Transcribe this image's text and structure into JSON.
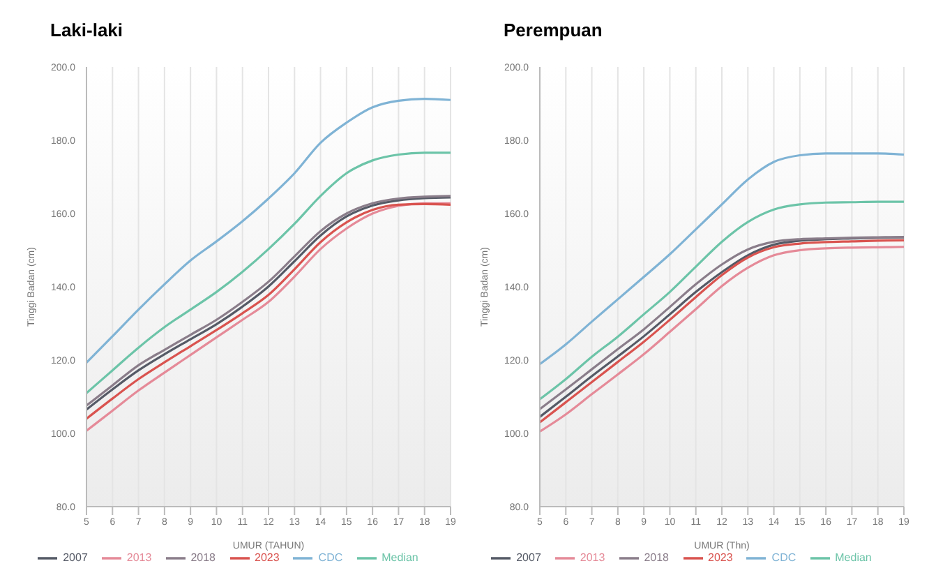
{
  "chart_data": [
    {
      "type": "line",
      "title": "Laki-laki",
      "xlabel": "UMUR (TAHUN)",
      "ylabel": "Tinggi Badan (cm)",
      "categories": [
        "5",
        "6",
        "7",
        "8",
        "9",
        "10",
        "11",
        "12",
        "13",
        "14",
        "15",
        "16",
        "17",
        "18",
        "19"
      ],
      "series": [
        {
          "name": "2007",
          "color": "#555a66",
          "values": [
            106.5,
            112,
            117.2,
            121.6,
            125.7,
            129.8,
            134.6,
            140.1,
            147,
            154,
            159.2,
            162.2,
            163.6,
            164.2,
            164.4
          ]
        },
        {
          "name": "2013",
          "color": "#e58a98",
          "values": [
            100.7,
            106.2,
            111.7,
            116.6,
            121.4,
            126.2,
            131,
            135.9,
            142.8,
            150.3,
            155.9,
            160,
            162.1,
            162.8,
            162.8
          ]
        },
        {
          "name": "2018",
          "color": "#8a7d8a",
          "values": [
            107.6,
            113.1,
            118.6,
            122.8,
            126.9,
            131,
            135.9,
            141.4,
            148.3,
            155.2,
            160,
            162.8,
            164.1,
            164.6,
            164.8
          ]
        },
        {
          "name": "2023",
          "color": "#d9534f",
          "values": [
            104,
            109.5,
            114.8,
            119.4,
            123.8,
            128.2,
            132.8,
            137.8,
            144.8,
            152.2,
            157.6,
            161,
            162.4,
            162.6,
            162.4
          ]
        },
        {
          "name": "Median",
          "color": "#6cc4a8",
          "values": [
            111,
            117.2,
            123.4,
            129,
            133.8,
            138.6,
            144.1,
            150.3,
            157.2,
            164.8,
            171,
            174.5,
            176.1,
            176.6,
            176.6
          ]
        },
        {
          "name": "CDC",
          "color": "#7fb3d5",
          "values": [
            119.3,
            126.5,
            133.8,
            140.7,
            147.2,
            152.4,
            157.9,
            164.1,
            171,
            179.3,
            184.8,
            189,
            190.8,
            191.3,
            191
          ]
        }
      ],
      "ylim": [
        80,
        200
      ],
      "yticks": [
        {
          "value": 80,
          "label": "80.0"
        },
        {
          "value": 100,
          "label": "100.0"
        },
        {
          "value": 120,
          "label": "120.0"
        },
        {
          "value": 140,
          "label": "140.0"
        },
        {
          "value": 160,
          "label": "160.0"
        },
        {
          "value": 180,
          "label": "180.0"
        },
        {
          "value": 200,
          "label": "200.0"
        }
      ],
      "grid": "x",
      "legend": "bottom",
      "marker": "none",
      "line_style": "solid"
    },
    {
      "type": "line",
      "title": "Perempuan",
      "xlabel": "UMUR (Thn)",
      "ylabel": "Tinggi Badan (cm)",
      "categories": [
        "5",
        "6",
        "7",
        "8",
        "9",
        "10",
        "11",
        "12",
        "13",
        "14",
        "15",
        "16",
        "17",
        "18",
        "19"
      ],
      "series": [
        {
          "name": "2007",
          "color": "#555a66",
          "values": [
            104.5,
            110,
            115.6,
            121,
            126.5,
            132.5,
            138.6,
            144,
            148.6,
            151.5,
            152.6,
            153,
            153.2,
            153.4,
            153.5
          ]
        },
        {
          "name": "2013",
          "color": "#e58a98",
          "values": [
            100.5,
            105.2,
            110.7,
            116.1,
            121.6,
            127.7,
            133.9,
            140.2,
            145.2,
            148.6,
            150,
            150.5,
            150.7,
            150.8,
            150.9
          ]
        },
        {
          "name": "2018",
          "color": "#8a7d8a",
          "values": [
            106.6,
            112,
            117.5,
            123,
            128.4,
            134.5,
            140.7,
            146.1,
            150.2,
            152.3,
            153,
            153.2,
            153.4,
            153.5,
            153.6
          ]
        },
        {
          "name": "2023",
          "color": "#d9534f",
          "values": [
            103,
            108.5,
            114,
            119.5,
            125,
            131,
            137.2,
            143.2,
            148,
            150.8,
            151.8,
            152.2,
            152.4,
            152.6,
            152.7
          ]
        },
        {
          "name": "Median",
          "color": "#6cc4a8",
          "values": [
            109.3,
            114.8,
            120.9,
            126.4,
            132.5,
            138.6,
            145.5,
            152.3,
            157.7,
            161.1,
            162.5,
            163,
            163.1,
            163.2,
            163.2
          ]
        },
        {
          "name": "CDC",
          "color": "#7fb3d5",
          "values": [
            118.9,
            124.3,
            130.5,
            136.6,
            142.7,
            148.9,
            155.7,
            162.5,
            169.3,
            174.1,
            175.9,
            176.4,
            176.4,
            176.4,
            176.1
          ]
        }
      ],
      "ylim": [
        80,
        200
      ],
      "yticks": [
        {
          "value": 80,
          "label": "80.0"
        },
        {
          "value": 100,
          "label": "100.0"
        },
        {
          "value": 120,
          "label": "120.0"
        },
        {
          "value": 140,
          "label": "140.0"
        },
        {
          "value": 160,
          "label": "160.0"
        },
        {
          "value": 180,
          "label": "180.0"
        },
        {
          "value": 200,
          "label": "200.0"
        }
      ],
      "grid": "x",
      "legend": "bottom",
      "marker": "none",
      "line_style": "solid"
    }
  ]
}
